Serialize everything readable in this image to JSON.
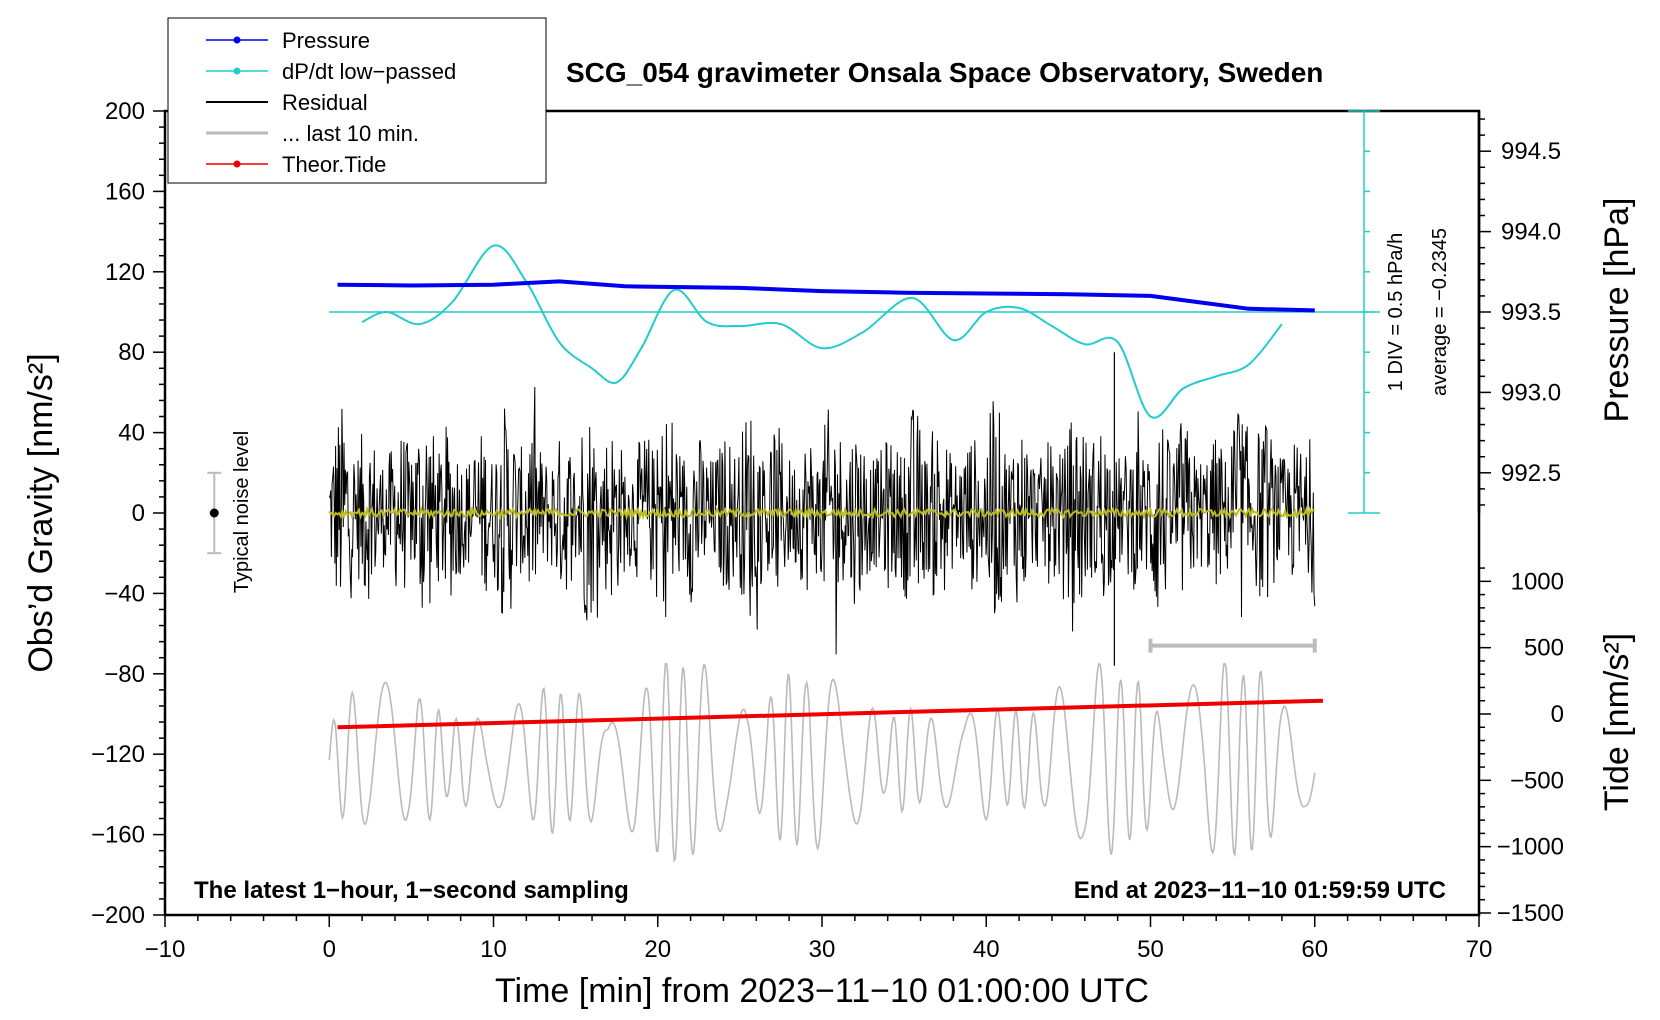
{
  "chart_data": {
    "type": "line",
    "title": "SCG_054 gravimeter Onsala Space Observatory, Sweden",
    "xlabel": "Time [min] from 2023−11−10 01:00:00 UTC",
    "ylabel_left": "Obs’d Gravity [nm/s²]",
    "ylabel_pressure": "Pressure [hPa]",
    "ylabel_tide": "Tide [nm/s²]",
    "xlim": [
      -10,
      70
    ],
    "ylim": [
      -200,
      200
    ],
    "x_ticks": [
      "−10",
      "0",
      "10",
      "20",
      "30",
      "40",
      "50",
      "60",
      "70"
    ],
    "y_ticks": [
      "200",
      "160",
      "120",
      "80",
      "40",
      "0",
      "−40",
      "−80",
      "−120",
      "−160",
      "−200"
    ],
    "pressure_ticks": [
      "994.5",
      "994.0",
      "993.5",
      "993.0",
      "992.5"
    ],
    "tide_ticks": [
      "1000",
      "500",
      "0",
      "−500",
      "−1000",
      "−1500"
    ],
    "legend": [
      {
        "label": "Pressure",
        "color": "#0000ee",
        "marker": true
      },
      {
        "label": "dP/dt low−passed",
        "color": "#22cccc",
        "marker": true
      },
      {
        "label": "Residual",
        "color": "#000000",
        "marker": false
      },
      {
        "label": "... last 10 min.",
        "color": "#bbbbbb",
        "marker": false
      },
      {
        "label": "Theor.Tide",
        "color": "#ee0000",
        "marker": true
      }
    ],
    "series": [
      {
        "name": "Pressure",
        "axis": "pressure_hPa",
        "color": "#0000ee",
        "x": [
          0.5,
          5,
          10,
          14,
          18,
          25,
          30,
          35,
          40,
          45,
          50,
          53,
          56,
          60
        ],
        "values": [
          993.67,
          993.665,
          993.67,
          993.69,
          993.66,
          993.65,
          993.63,
          993.62,
          993.615,
          993.61,
          993.6,
          993.56,
          993.52,
          993.51
        ]
      },
      {
        "name": "dP/dt low−passed",
        "axis": "gravity",
        "color": "#22cccc",
        "x": [
          2,
          3.5,
          5.5,
          7.5,
          10,
          12,
          14,
          16,
          17.5,
          19,
          21,
          23,
          25,
          27.5,
          30,
          32.5,
          35.5,
          38,
          40,
          42,
          44,
          46,
          48,
          50,
          52,
          54,
          56,
          58
        ],
        "values": [
          95,
          100,
          94,
          105,
          133,
          115,
          85,
          72,
          65,
          82,
          111,
          95,
          93,
          94,
          82,
          90,
          107,
          86,
          100,
          102,
          93,
          84,
          85,
          48,
          62,
          68,
          74,
          94
        ]
      },
      {
        "name": "Residual",
        "axis": "gravity",
        "color": "#000000",
        "x_range": [
          0,
          60
        ],
        "amplitude_range": [
          -76,
          72
        ]
      },
      {
        "name": "Residual mean",
        "axis": "gravity",
        "color": "#bbbb22",
        "x_range": [
          0,
          60
        ],
        "level": 0
      },
      {
        "name": "... last 10 min.",
        "axis": "gravity",
        "color": "#bbbbbb",
        "x_range": [
          0,
          60
        ],
        "center": -123,
        "amplitude_range": [
          -175,
          -75
        ]
      },
      {
        "name": "Theor.Tide",
        "axis": "tide_nm_s2",
        "color": "#ee0000",
        "x": [
          0.5,
          60.5
        ],
        "values": [
          -100,
          100
        ]
      }
    ],
    "pressure_scale": {
      "label": "1 DIV = 0.5 hPa/h",
      "average_label": "average = −0.2345",
      "x": 63,
      "range": [
        0,
        200
      ],
      "reference_level": 100
    },
    "noise_level": {
      "label": "Typical noise level",
      "x": -7,
      "center": 0,
      "range": [
        -20,
        20
      ]
    },
    "last_10min_bar": {
      "x_range": [
        50,
        60
      ],
      "y": -66
    },
    "annotations": {
      "left": "The latest 1−hour, 1−second sampling",
      "right": "End at 2023−11−10 01:59:59 UTC"
    }
  }
}
